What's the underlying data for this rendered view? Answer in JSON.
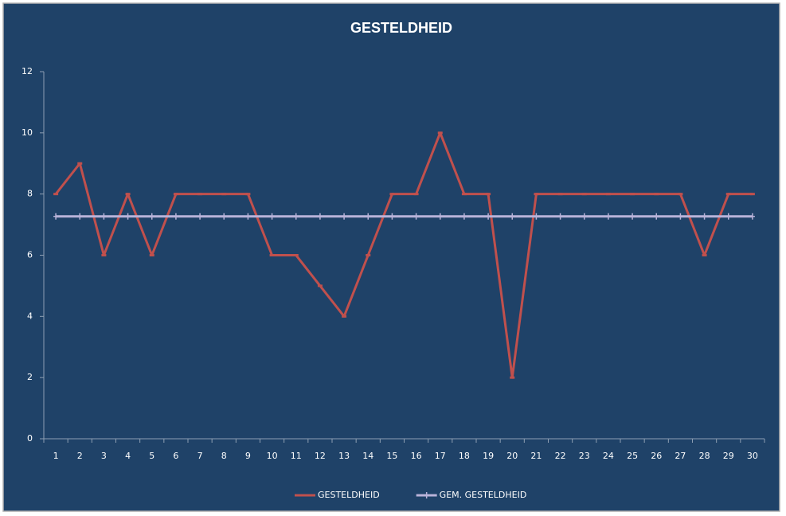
{
  "chart_data": {
    "type": "line",
    "title": "GESTELDHEID",
    "categories": [
      "1",
      "2",
      "3",
      "4",
      "5",
      "6",
      "7",
      "8",
      "9",
      "10",
      "11",
      "12",
      "13",
      "14",
      "15",
      "16",
      "17",
      "18",
      "19",
      "20",
      "21",
      "22",
      "23",
      "24",
      "25",
      "26",
      "27",
      "28",
      "29",
      "30"
    ],
    "series": [
      {
        "name": "GESTELDHEID",
        "color": "#c0504d",
        "marker": "dash",
        "values": [
          8,
          9,
          6,
          8,
          6,
          8,
          8,
          8,
          8,
          6,
          6,
          5,
          4,
          6,
          8,
          8,
          10,
          8,
          8,
          2,
          8,
          8,
          8,
          8,
          8,
          8,
          8,
          6,
          8,
          8
        ]
      },
      {
        "name": "GEM. GESTELDHEID",
        "color": "#b9b3d9",
        "marker": "plus",
        "values": [
          7.27,
          7.27,
          7.27,
          7.27,
          7.27,
          7.27,
          7.27,
          7.27,
          7.27,
          7.27,
          7.27,
          7.27,
          7.27,
          7.27,
          7.27,
          7.27,
          7.27,
          7.27,
          7.27,
          7.27,
          7.27,
          7.27,
          7.27,
          7.27,
          7.27,
          7.27,
          7.27,
          7.27,
          7.27,
          7.27
        ]
      }
    ],
    "ylim": [
      0,
      12
    ],
    "yticks": [
      0,
      2,
      4,
      6,
      8,
      10,
      12
    ],
    "grid": false,
    "legend": "bottom"
  }
}
